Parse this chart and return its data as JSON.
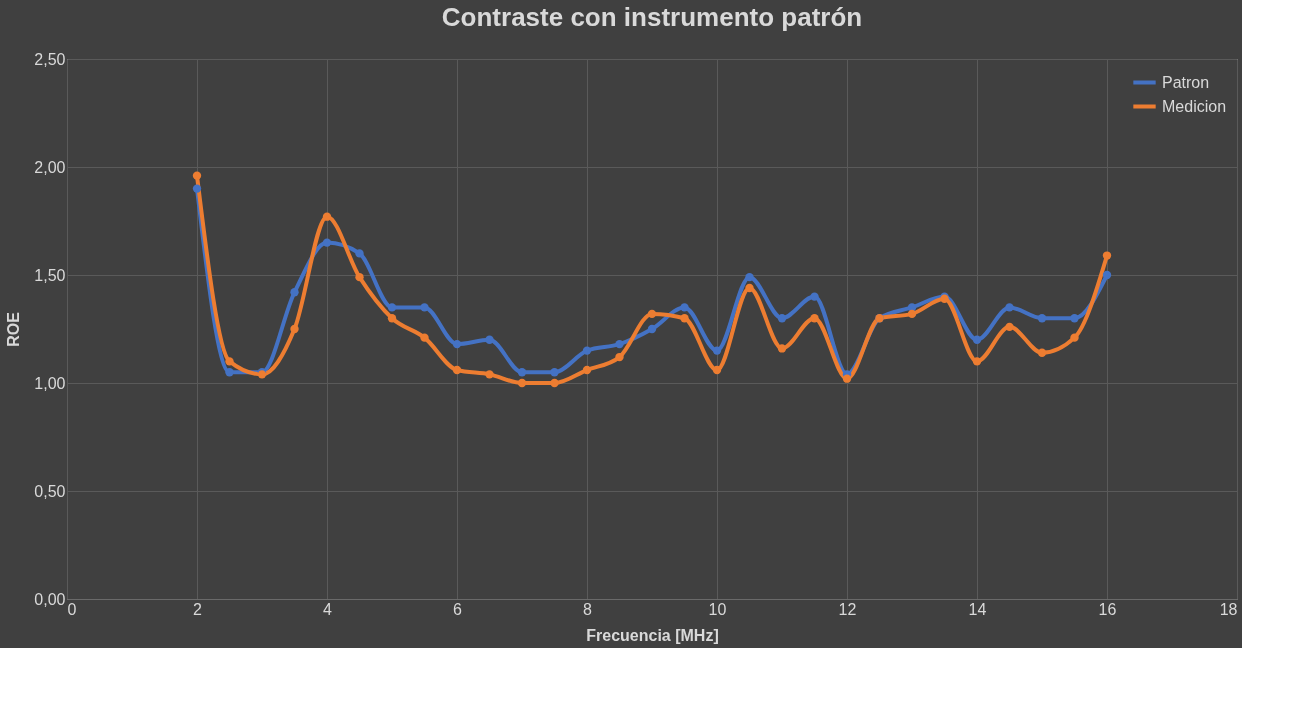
{
  "chart_data": {
    "type": "line",
    "title": "Contraste con instrumento patrón",
    "xlabel": "Frecuencia [MHz]",
    "ylabel": "ROE",
    "x": [
      2,
      2.5,
      3,
      3.5,
      4,
      4.5,
      5,
      5.5,
      6,
      6.5,
      7,
      7.5,
      8,
      8.5,
      9,
      9.5,
      10,
      10.5,
      11,
      11.5,
      12,
      12.5,
      13,
      13.5,
      14,
      14.5,
      15,
      15.5,
      16
    ],
    "series": [
      {
        "name": "Patron",
        "color": "#4472c4",
        "values": [
          1.9,
          1.05,
          1.05,
          1.42,
          1.65,
          1.6,
          1.35,
          1.35,
          1.18,
          1.2,
          1.05,
          1.05,
          1.15,
          1.18,
          1.25,
          1.35,
          1.15,
          1.49,
          1.3,
          1.4,
          1.04,
          1.3,
          1.35,
          1.4,
          1.2,
          1.35,
          1.3,
          1.3,
          1.5
        ]
      },
      {
        "name": "Medicion",
        "color": "#ed7d31",
        "values": [
          1.96,
          1.1,
          1.04,
          1.25,
          1.77,
          1.49,
          1.3,
          1.21,
          1.06,
          1.04,
          1.0,
          1.0,
          1.06,
          1.12,
          1.32,
          1.3,
          1.06,
          1.44,
          1.16,
          1.3,
          1.02,
          1.3,
          1.32,
          1.39,
          1.1,
          1.26,
          1.14,
          1.21,
          1.59
        ]
      }
    ],
    "xlim": [
      0,
      18
    ],
    "xticks": [
      0,
      2,
      4,
      6,
      8,
      10,
      12,
      14,
      16,
      18
    ],
    "ylim": [
      0,
      2.5
    ],
    "yticks": [
      {
        "value": 0,
        "label": "0,00"
      },
      {
        "value": 0.5,
        "label": "0,50"
      },
      {
        "value": 1,
        "label": "1,00"
      },
      {
        "value": 1.5,
        "label": "1,50"
      },
      {
        "value": 2,
        "label": "2,00"
      },
      {
        "value": 2.5,
        "label": "2,50"
      }
    ],
    "grid": true,
    "legend": "top right",
    "marker": "circle",
    "line_style": "solid"
  }
}
